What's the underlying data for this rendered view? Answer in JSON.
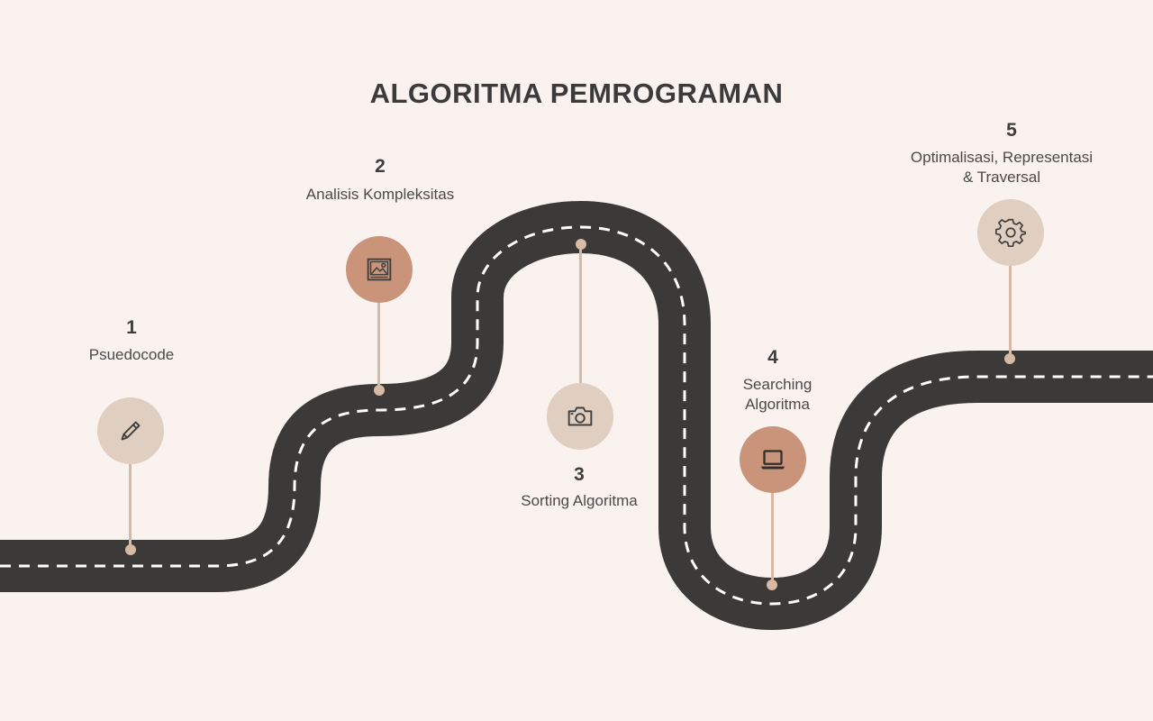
{
  "title": "ALGORITMA PEMROGRAMAN",
  "colors": {
    "background": "#faf2ee",
    "road": "#3b3a39",
    "road_dash": "#ffffff",
    "stem": "#d7b9a4",
    "icon_light": "#e0cfc0",
    "icon_dark": "#c9947a",
    "text": "#3f3f3f"
  },
  "milestones": [
    {
      "number": "1",
      "label": "Psuedocode",
      "icon": "pencil-icon",
      "tone": "light"
    },
    {
      "number": "2",
      "label": "Analisis Kompleksitas",
      "icon": "image-icon",
      "tone": "dark"
    },
    {
      "number": "3",
      "label": "Sorting Algoritma",
      "icon": "camera-icon",
      "tone": "light"
    },
    {
      "number": "4",
      "label": "Searching\nAlgoritma",
      "icon": "laptop-icon",
      "tone": "dark"
    },
    {
      "number": "5",
      "label": "Optimalisasi, Representasi\n& Traversal",
      "icon": "gear-icon",
      "tone": "light"
    }
  ]
}
